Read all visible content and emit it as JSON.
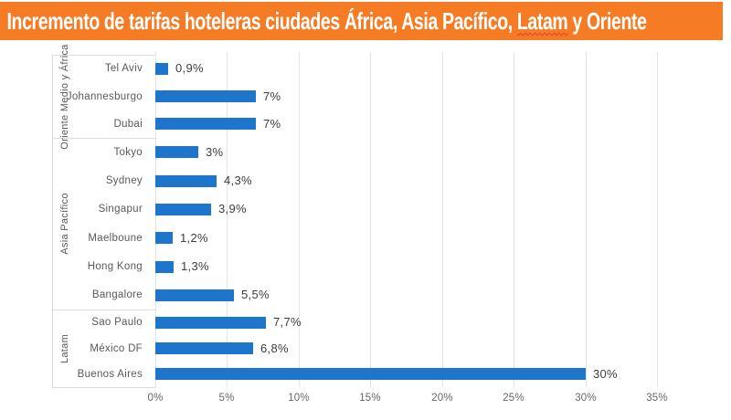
{
  "title": {
    "pre": "Incremento de tarifas hoteleras ciudades África, Asia Pacífico, ",
    "marked": "Latam",
    "post": " y Oriente"
  },
  "colors": {
    "header_bg": "#F57B25",
    "title_text": "#FFFFFF",
    "bar": "#1E76CC",
    "gridline": "#E3E3E3",
    "panel_border": "#DCDCDC",
    "city_label": "#595959",
    "region_label": "#595959",
    "value_label": "#3C3C3C",
    "tick_label": "#666666",
    "misspell_underline": "#E03A2F"
  },
  "chart_data": {
    "type": "bar",
    "orientation": "horizontal",
    "title": "Incremento de tarifas hoteleras ciudades África, Asia Pacífico, Latam y Oriente",
    "unit": "%",
    "xlim": [
      0,
      35
    ],
    "x_tick_step": 5,
    "x_tick_labels": [
      "0%",
      "5%",
      "10%",
      "15%",
      "20%",
      "25%",
      "30%",
      "35%"
    ],
    "grid": "vertical",
    "legend": "none",
    "groups": [
      {
        "region": "Oriente Medio y África",
        "cities": [
          {
            "name": "Tel Aviv",
            "value": 0.9,
            "label": "0,9%"
          },
          {
            "name": "Johannesburgo",
            "value": 7,
            "label": "7%"
          },
          {
            "name": "Dubai",
            "value": 7,
            "label": "7%"
          }
        ]
      },
      {
        "region": "Asia Pacífico",
        "cities": [
          {
            "name": "Tokyo",
            "value": 3,
            "label": "3%"
          },
          {
            "name": "Sydney",
            "value": 4.3,
            "label": "4,3%"
          },
          {
            "name": "Singapur",
            "value": 3.9,
            "label": "3,9%"
          },
          {
            "name": "Maelboune",
            "value": 1.2,
            "label": "1,2%"
          },
          {
            "name": "Hong Kong",
            "value": 1.3,
            "label": "1,3%"
          },
          {
            "name": "Bangalore",
            "value": 5.5,
            "label": "5,5%"
          }
        ]
      },
      {
        "region": "Latam",
        "cities": [
          {
            "name": "Sao Paulo",
            "value": 7.7,
            "label": "7,7%"
          },
          {
            "name": "México DF",
            "value": 6.8,
            "label": "6,8%"
          },
          {
            "name": "Buenos Aires",
            "value": 30,
            "label": "30%"
          }
        ]
      }
    ]
  }
}
